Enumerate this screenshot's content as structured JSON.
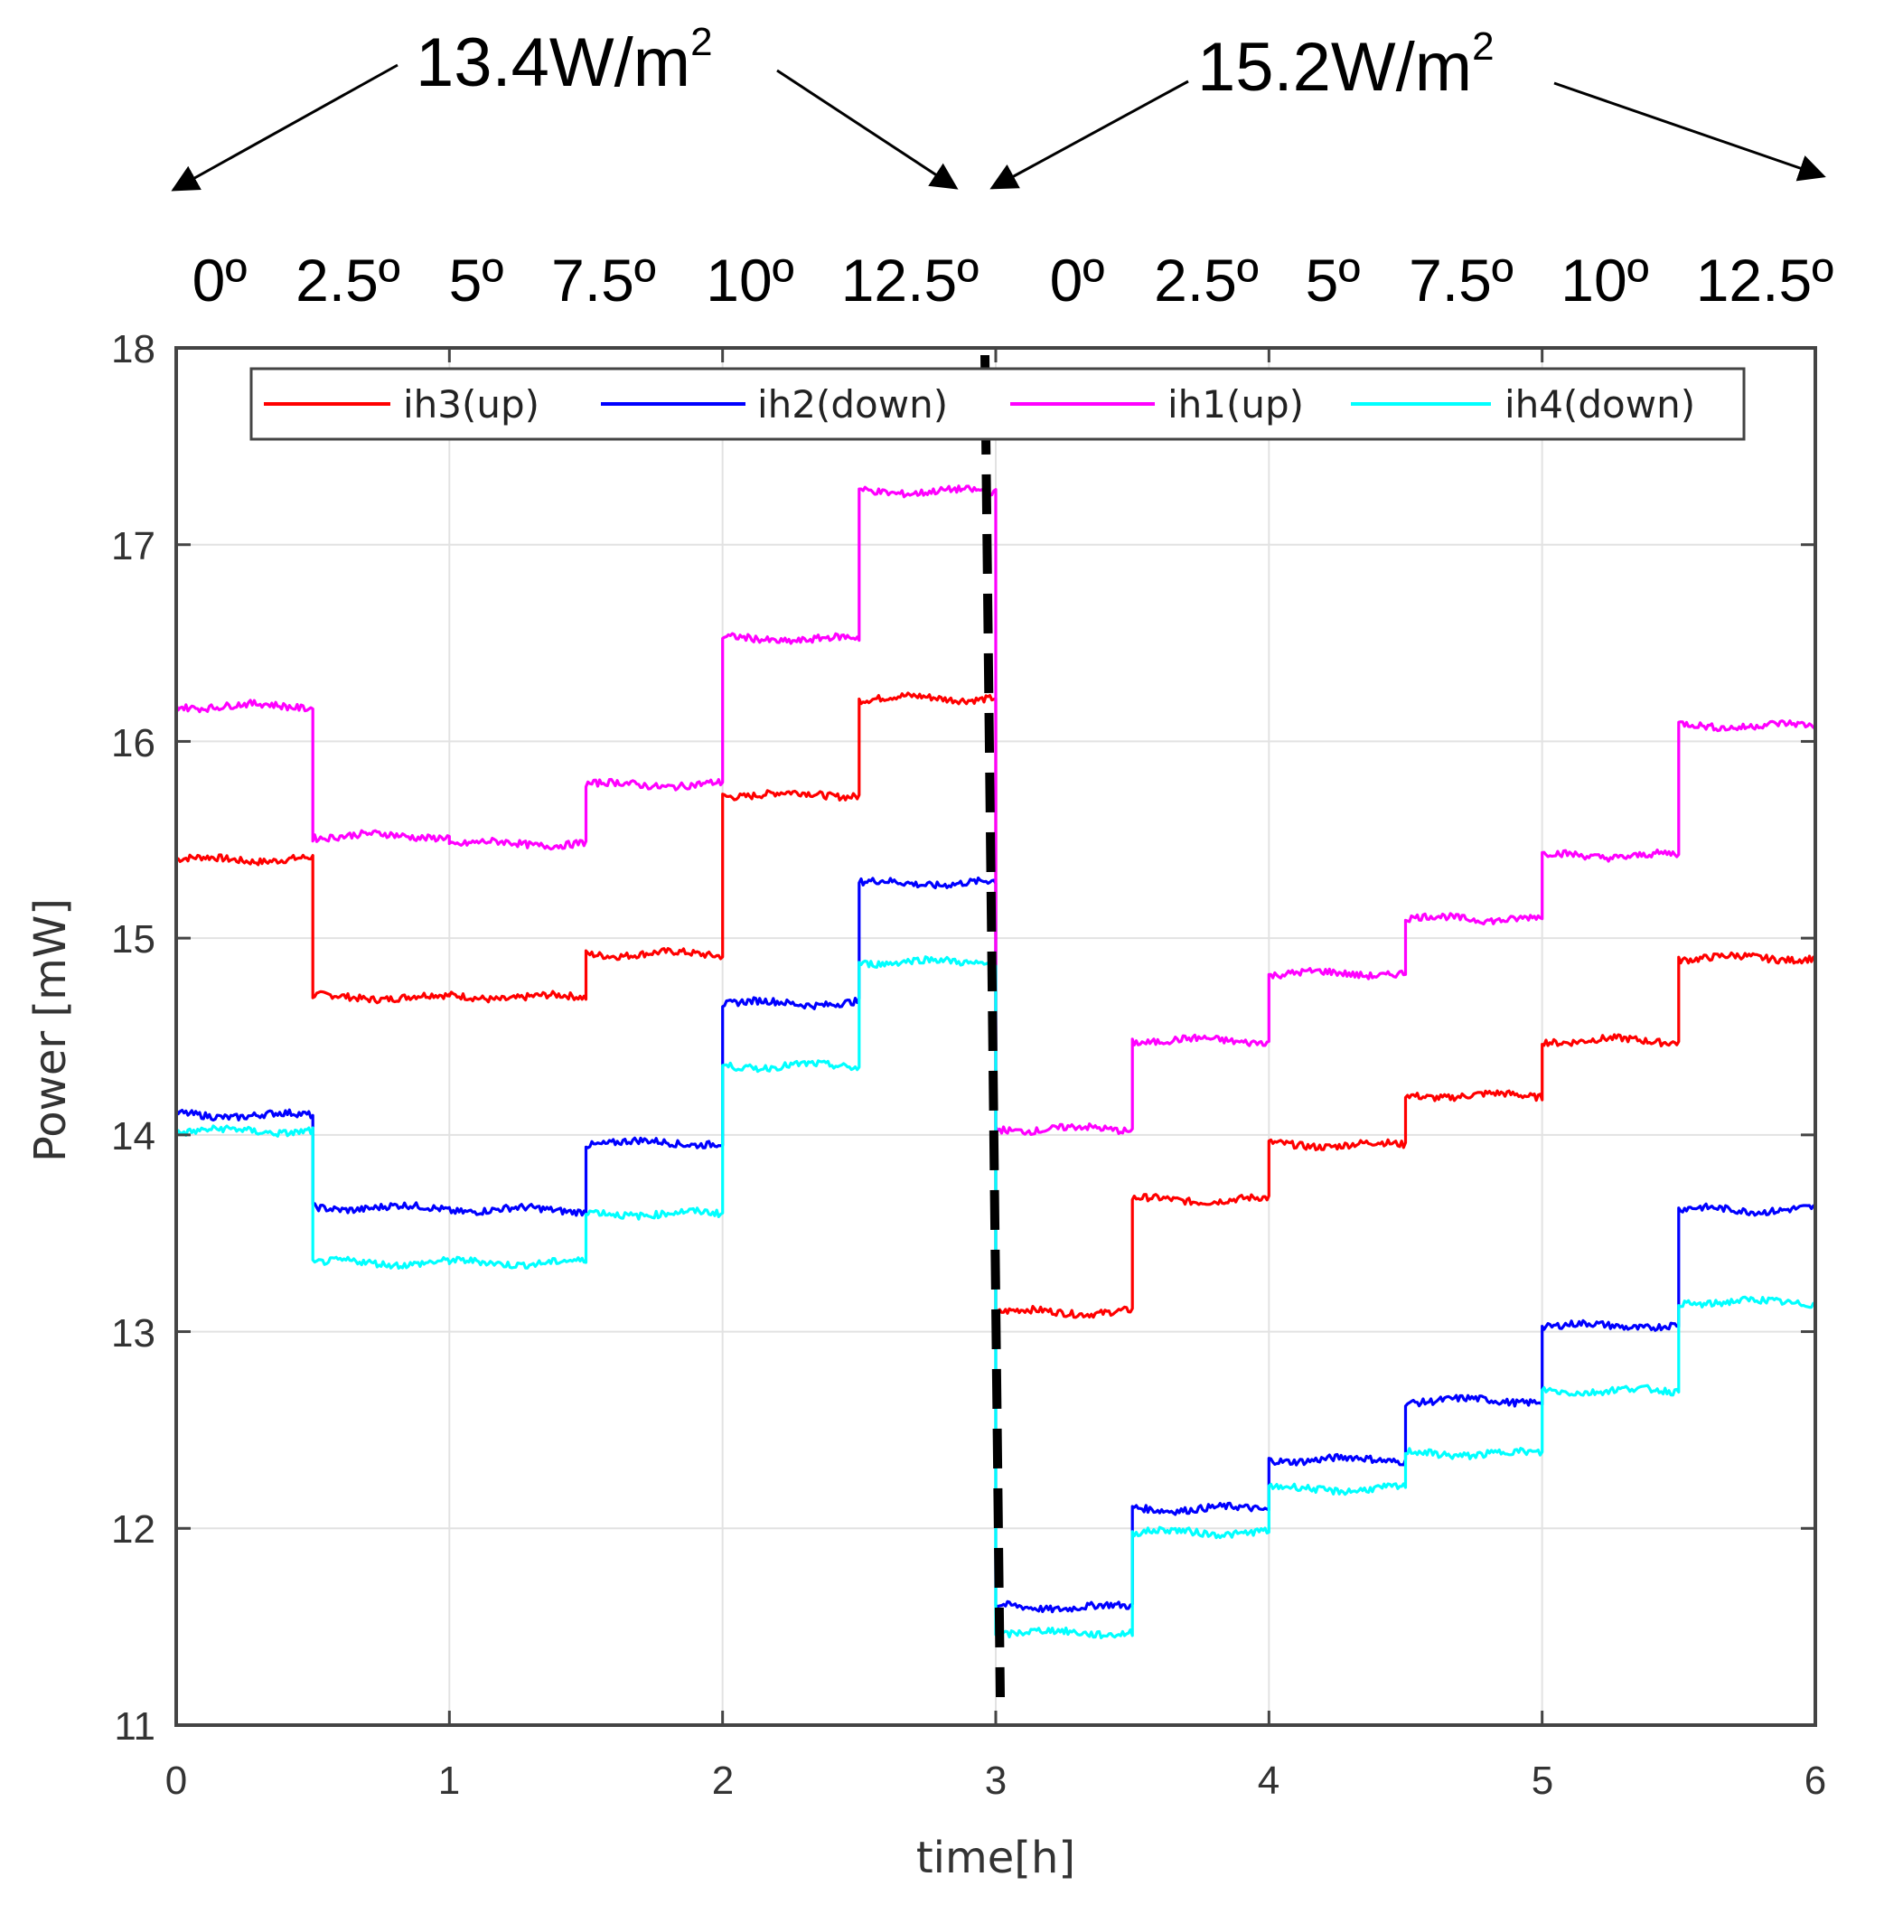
{
  "chart_data": {
    "type": "line",
    "xlabel": "time[h]",
    "ylabel": "Power  [mW]",
    "xlim": [
      0,
      6
    ],
    "ylim": [
      11,
      18
    ],
    "x_ticks": [
      "0",
      "1",
      "2",
      "3",
      "4",
      "5",
      "6"
    ],
    "y_ticks": [
      "11",
      "12",
      "13",
      "14",
      "15",
      "16",
      "17",
      "18"
    ],
    "grid": true,
    "legend_position": "top, horizontal",
    "divider_x": 3,
    "step_width_h": 0.5,
    "series": [
      {
        "name": "ih3(up)",
        "color": "#ff0000",
        "values": [
          15.4,
          14.7,
          14.7,
          14.92,
          15.73,
          16.22,
          13.1,
          13.67,
          13.95,
          14.2,
          14.48,
          14.9
        ]
      },
      {
        "name": "ih2(down)",
        "color": "#0000ff",
        "values": [
          14.1,
          13.63,
          13.62,
          13.96,
          14.67,
          15.28,
          11.6,
          12.1,
          12.35,
          12.65,
          13.03,
          13.62
        ]
      },
      {
        "name": "ih1(up)",
        "color": "#ff00ff",
        "values": [
          16.18,
          15.52,
          15.48,
          15.78,
          16.52,
          17.27,
          14.03,
          14.48,
          14.82,
          15.1,
          15.42,
          16.08
        ]
      },
      {
        "name": "ih4(down)",
        "color": "#00ffff",
        "values": [
          14.02,
          13.35,
          13.35,
          13.6,
          14.35,
          14.88,
          11.47,
          11.98,
          12.2,
          12.38,
          12.7,
          13.15
        ]
      }
    ]
  },
  "annotations": {
    "irradiance_left": {
      "value": "13.4W/m",
      "sup": "2"
    },
    "irradiance_right": {
      "value": "15.2W/m",
      "sup": "2"
    },
    "angles_left": [
      "0º",
      "2.5º",
      "5º",
      "7.5º",
      "10º",
      "12.5º"
    ],
    "angles_right": [
      "0º",
      "2.5º",
      "5º",
      "7.5º",
      "10º",
      "12.5º"
    ]
  }
}
